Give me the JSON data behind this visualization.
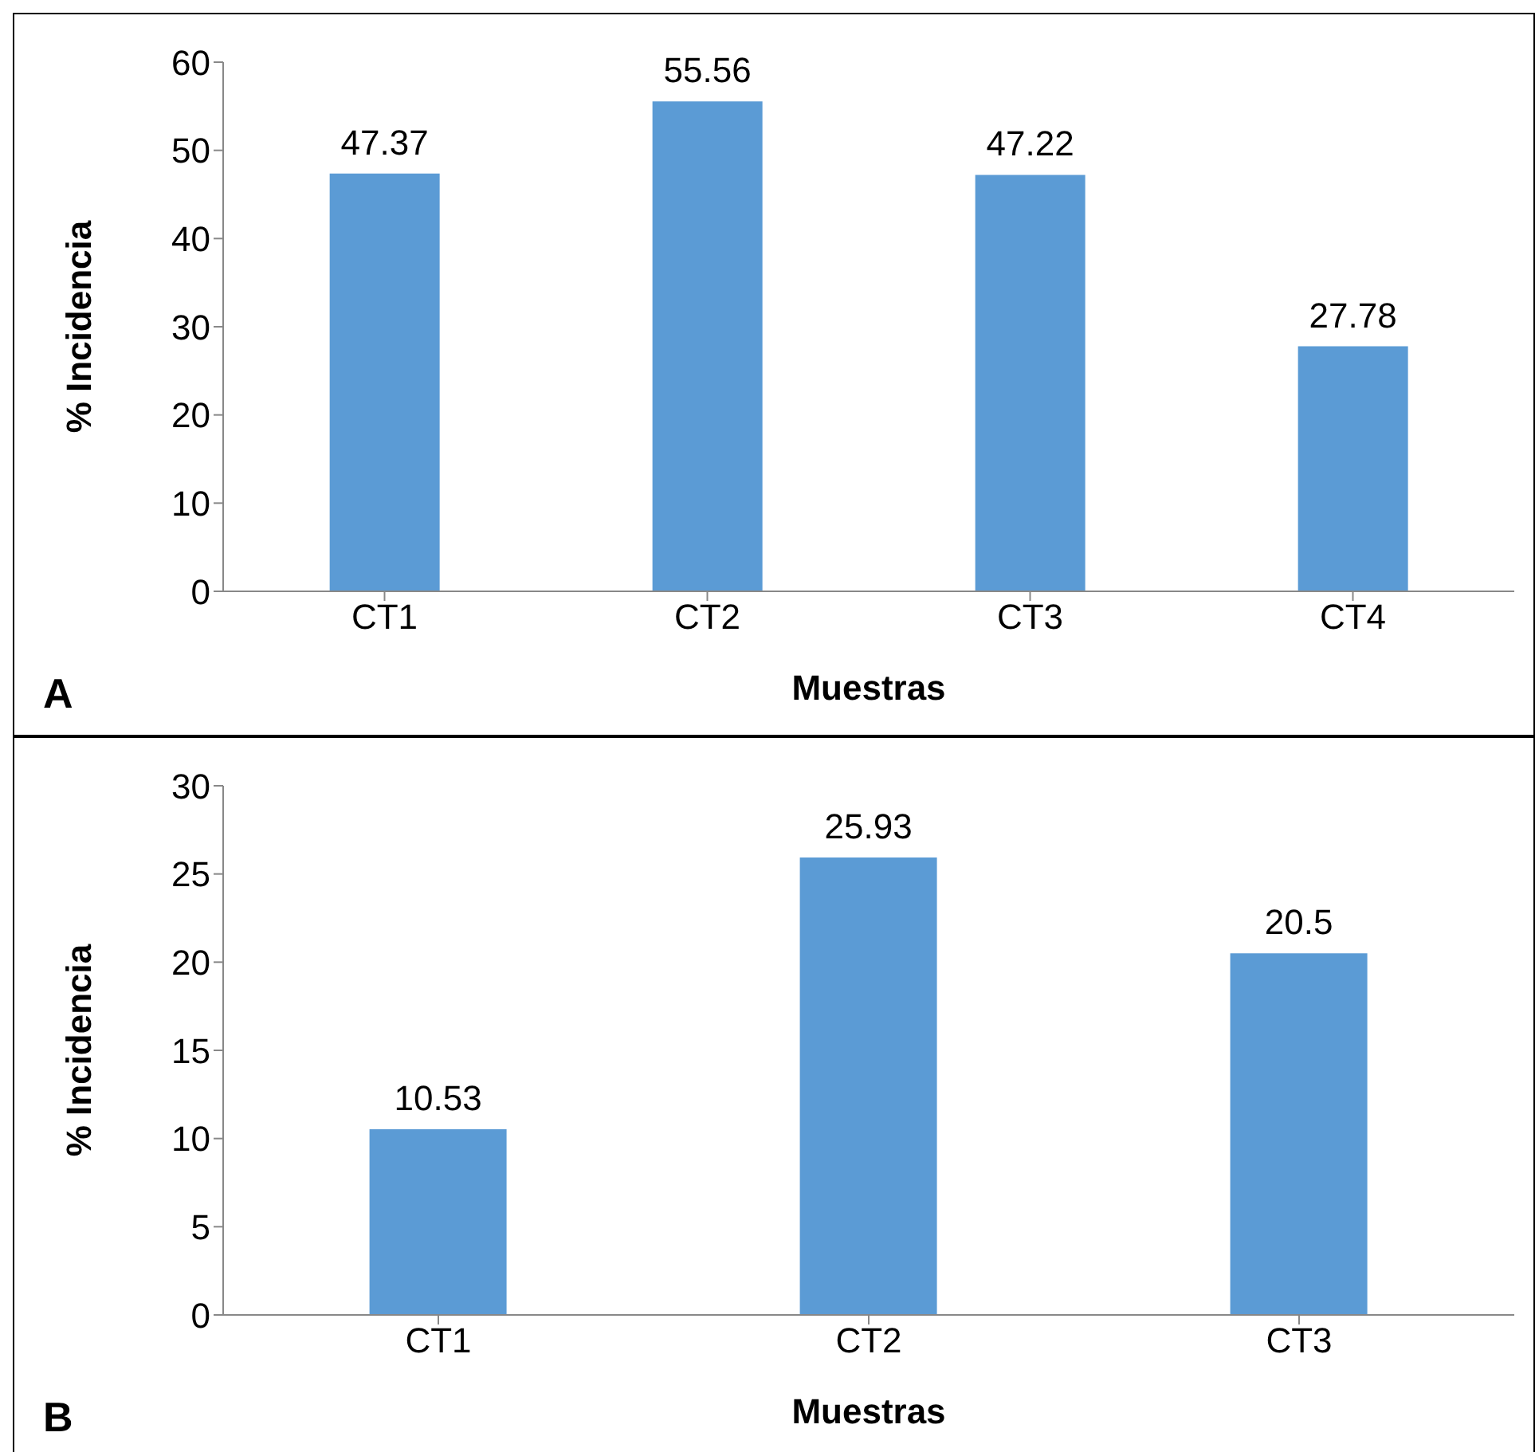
{
  "chart_data": [
    {
      "type": "bar",
      "categories": [
        "CT1",
        "CT2",
        "CT3",
        "CT4"
      ],
      "values": [
        47.37,
        55.56,
        47.22,
        27.78
      ],
      "color": "#5b9bd5",
      "ylim": [
        0,
        60
      ],
      "yticks": [
        0,
        10,
        20,
        30,
        40,
        50,
        60
      ],
      "xlabel": "Muestras",
      "ylabel": "% Incidencia",
      "data_labels": true,
      "annotations": [
        "A"
      ]
    },
    {
      "type": "bar",
      "categories": [
        "CT1",
        "CT2",
        "CT3"
      ],
      "values": [
        10.53,
        25.93,
        20.5
      ],
      "color": "#5b9bd5",
      "ylim": [
        0,
        30
      ],
      "yticks": [
        0,
        5,
        10,
        15,
        20,
        25,
        30
      ],
      "xlabel": "Muestras",
      "ylabel": "% Incidencia",
      "data_labels": true,
      "annotations": [
        "B"
      ]
    }
  ]
}
